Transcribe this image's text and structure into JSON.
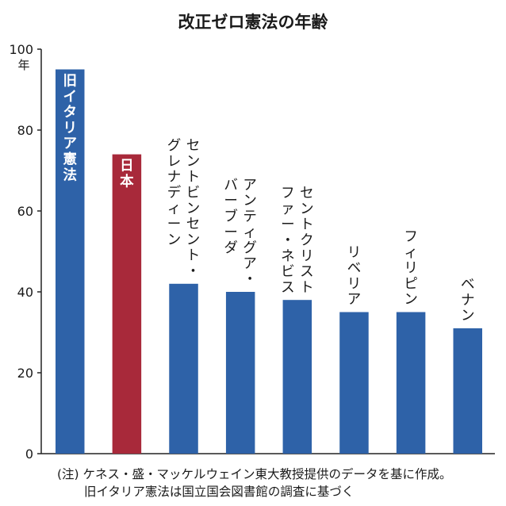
{
  "chart_data": {
    "type": "bar",
    "title": "改正ゼロ憲法の年齢",
    "y_unit": "年",
    "ylim": [
      0,
      100
    ],
    "yticks": [
      0,
      20,
      40,
      60,
      80,
      100
    ],
    "grid": false,
    "categories": [
      "旧イタリア憲法",
      "日本",
      "セントビンセント・グレナディーン",
      "アンティグア・バーブーダ",
      "セントクリストファー・ネビス",
      "リベリア",
      "フィリピン",
      "ベナン"
    ],
    "label_lines": [
      [
        "旧イタリア憲法"
      ],
      [
        "日本"
      ],
      [
        "セントビンセント・",
        "グレナディーン"
      ],
      [
        "アンティグア・",
        "バーブーダ"
      ],
      [
        "セントクリスト",
        "ファー・ネビス"
      ],
      [
        "リベリア"
      ],
      [
        "フィリピン"
      ],
      [
        "ベナン"
      ]
    ],
    "values": [
      95,
      74,
      42,
      40,
      38,
      35,
      35,
      31
    ],
    "label_inside": [
      true,
      true,
      false,
      false,
      false,
      false,
      false,
      false
    ],
    "colors": [
      "#2e62a8",
      "#a8293a",
      "#2e62a8",
      "#2e62a8",
      "#2e62a8",
      "#2e62a8",
      "#2e62a8",
      "#2e62a8"
    ]
  },
  "notes": {
    "line1": "(注) ケネス・盛・マッケルウェイン東大教授提供のデータを基に作成。",
    "line2": "旧イタリア憲法は国立国会図書館の調査に基づく"
  }
}
